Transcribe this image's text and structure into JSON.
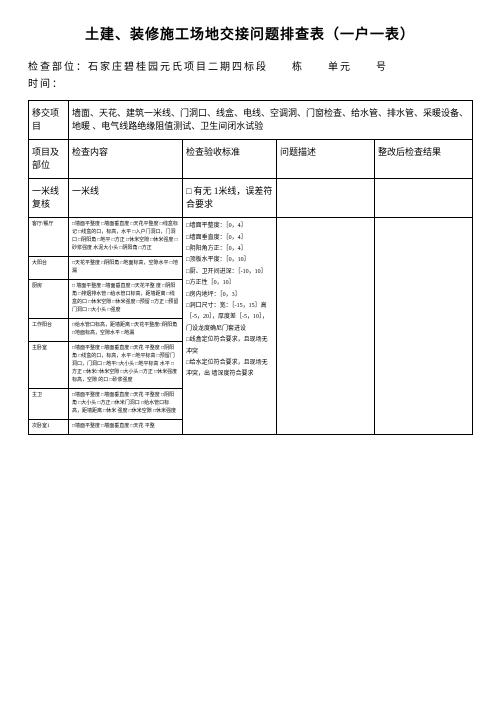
{
  "title": "土建、装修施工场地交接问题排查表（一户一表）",
  "meta_line1_prefix": "检查部位：",
  "meta_line1_body": "石家庄碧桂园元氏项目二期四标段　　栋　　单元　　号",
  "meta_line2": "时间：",
  "row_handover_label": "移交项目",
  "row_handover_text": "墙面、天花、建筑一米线、门洞口、线盒、电线、空调洞、门窗检查、给水管、排水管、采暖设备、地暖 、电气线路绝缘阻值测试、卫生间闭水试验",
  "hdr_item": "项目及部位",
  "hdr_content": "检查内容",
  "hdr_criteria": "检查验收标准",
  "hdr_problem": "问题描述",
  "hdr_result": "整改后检查结果",
  "sec_1m_label": "一米线复核",
  "sec_1m_content": "一米线",
  "sec_1m_crit": "□ 有无 1米线，误差符合要求",
  "r1_label": "客厅/餐厅",
  "r1_content": "□墙面平整度 □墙面垂直度 □天花平整度 □线盒标记 □线盒的口，标高，水平 □入户门洞口，门洞口 □阴阳角 □地平 □方正 □休米空隙 □休米强度 □砂浆强度 水泥大小头 □阴阳角 □方正",
  "r2_label": "大阳台",
  "r2_content": "□天花平整度 □阴阳角 □地面标高，空隙水平 □地漏",
  "r3_label": "厨房",
  "r3_content": "□ 墙面平整度 □墙面垂直度 □天花平整 度 □阴阳角 □排烟排水管 □给水管口标高，距墙距离 □线盒的口 □休米空隙 □休米强度 □预留 □方正 □预留门洞口 □大小头 □强度",
  "r4_label": "工作阳台",
  "r4_content": "□给水管口标高，距墙距离 □天花平整度□阴阳角 □地面标高，空隙水平 □地漏",
  "r5_label": "主卧室",
  "r5_content": "□墙面平整度 □墙面垂直度 □天花 平整度 □阴阳角 □线盒的口，标高，水平 □地平标高 □预留门洞口，门洞口 □地平□大小头 □地平标高 水平 □方正 □休米□休米空隙 □大小头 □方正 □休米强度标高，空隙 的口 □砂浆强度",
  "r6_label": "主卫",
  "r6_content": "□墙面平整度 □墙面垂直度 □天花 平整度 □阴阳角 □大小头 □方正 □休米门洞口 □给水管口标高，距墙距离 □休米 强度 □休米空隙 □休米强度",
  "r7_label": "次卧室1",
  "r7_content": "□墙面平整度 □墙面垂直度 □天花 平整",
  "criteria_block": "□墙面平整度：［0，4］\n□墙面垂直度：［0，4］\n□阴阳角方正：［0，4］\n□顶板水平度：［0，10］\n□厨、卫开间进深：［-10，10］\n□方正性［0，10］\n□房内地坪：［0，3］\n□洞口尺寸：宽：［-15，15］高［-5，20］，厚度差［-5，10］，门设龙度确尼门套进设\n□线盒定位符合要求，且现场无冲突\n□给水定位符合要求，且现场无冲突，出 墙深度符合要求"
}
